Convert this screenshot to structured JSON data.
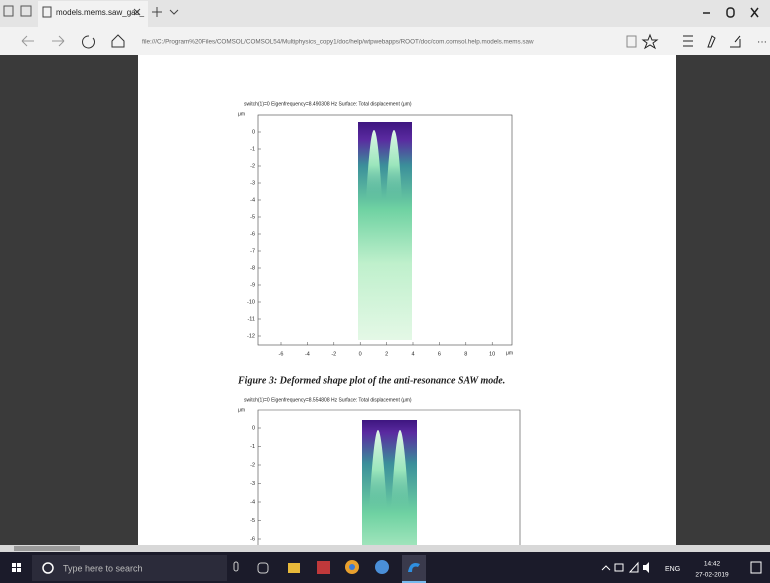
{
  "browser": {
    "tab_title": "models.mems.saw_gas_",
    "address": "file:///C:/Program%20Files/COMSOL/COMSOL54/Multiphysics_copy1/doc/help/wtpwebapps/ROOT/doc/com.comsol.help.models.mems.saw"
  },
  "document": {
    "figure1": {
      "title": "switch(1)=0 Eigenfrequency=8.490308 Hz Surface: Total displacement (μm)",
      "y_unit": "μm",
      "y_ticks": [
        "0",
        "-1",
        "-2",
        "-3",
        "-4",
        "-5",
        "-6",
        "-7",
        "-8",
        "-9",
        "-10",
        "-11",
        "-12"
      ],
      "x_ticks": [
        "-6",
        "-4",
        "-2",
        "0",
        "2",
        "4",
        "6",
        "8",
        "10"
      ],
      "x_unit": "μm"
    },
    "caption": "Figure 3: Deformed shape plot of the anti-resonance SAW mode.",
    "figure2": {
      "title": "switch(1)=0 Eigenfrequency=8.554808 Hz Surface: Total displacement (μm)",
      "y_unit": "μm",
      "y_ticks": [
        "0",
        "-1",
        "-2",
        "-3",
        "-4",
        "-5",
        "-6"
      ]
    }
  },
  "taskbar": {
    "search_placeholder": "Type here to search",
    "language": "ENG",
    "time": "14:42",
    "date": "27-02-2019"
  }
}
